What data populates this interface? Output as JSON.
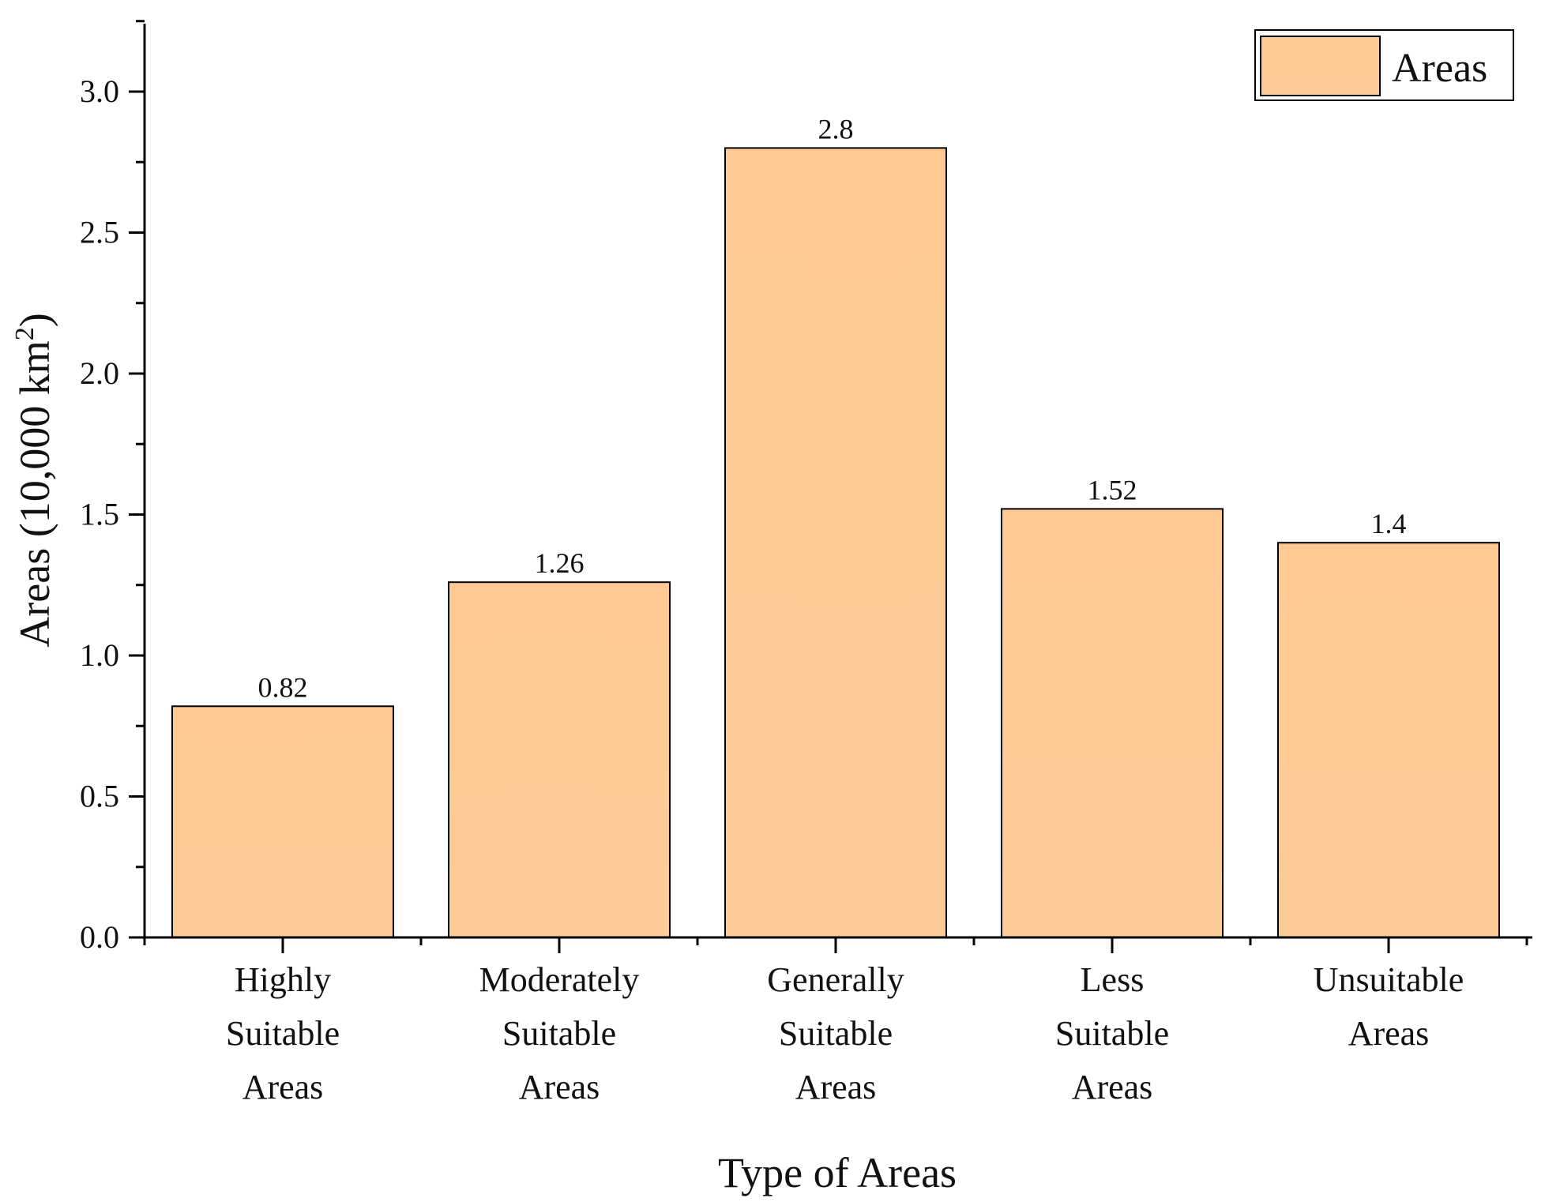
{
  "chart_data": {
    "type": "bar",
    "title": "",
    "xlabel": "Type of Areas",
    "ylabel": "Areas (10,000 km",
    "ylabel_superscript": "2",
    "ylabel_suffix": ")",
    "categories": [
      [
        "Highly",
        "Suitable",
        "Areas"
      ],
      [
        "Moderately",
        "Suitable",
        "Areas"
      ],
      [
        "Generally",
        "Suitable",
        "Areas"
      ],
      [
        "Less",
        "Suitable",
        "Areas"
      ],
      [
        "Unsuitable",
        "Areas"
      ]
    ],
    "series": [
      {
        "name": "Areas",
        "values": [
          0.82,
          1.26,
          2.8,
          1.52,
          1.4
        ]
      }
    ],
    "value_labels": [
      "0.82",
      "1.26",
      "2.8",
      "1.52",
      "1.4"
    ],
    "yticks": [
      "0.0",
      "0.5",
      "1.0",
      "1.5",
      "2.0",
      "2.5",
      "3.0"
    ],
    "ytick_values": [
      0,
      0.5,
      1.0,
      1.5,
      2.0,
      2.5,
      3.0
    ],
    "ylim": [
      0,
      3.25
    ],
    "grid": false,
    "legend_position": "top-right",
    "colors": {
      "bar_fill": "#fdca93",
      "bar_stroke": "#000000",
      "axis": "#000000"
    }
  }
}
